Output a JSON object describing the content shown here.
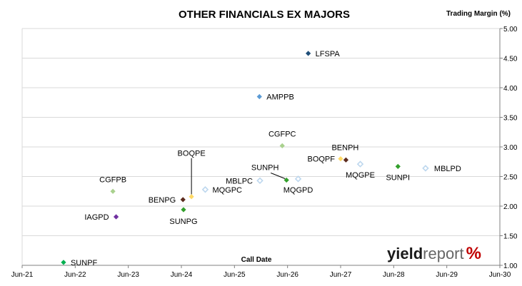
{
  "chart_data": {
    "type": "scatter",
    "title": "OTHER FINANCIALS EX MAJORS",
    "ylabel": "Trading Margin (%)",
    "xlabel": "Call Date",
    "x_ticks": [
      "Jun-21",
      "Jun-22",
      "Jun-23",
      "Jun-24",
      "Jun-25",
      "Jun-26",
      "Jun-27",
      "Jun-28",
      "Jun-29",
      "Jun-30"
    ],
    "y_ticks": [
      "1.00",
      "1.50",
      "2.00",
      "2.50",
      "3.00",
      "3.50",
      "4.00",
      "4.50",
      "5.00"
    ],
    "xlim": [
      2021.45,
      2030.45
    ],
    "ylim": [
      1.0,
      5.0
    ],
    "grid": "horizontal",
    "points": [
      {
        "label": "LFSPA",
        "x": 2026.84,
        "y": 4.58,
        "color": "#1f4e79",
        "filled": true
      },
      {
        "label": "AMPPB",
        "x": 2025.92,
        "y": 3.85,
        "color": "#5b9bd5",
        "filled": true
      },
      {
        "label": "CGFPC",
        "x": 2026.35,
        "y": 3.02,
        "color": "#a9d18e",
        "filled": true
      },
      {
        "label": "BENPH",
        "x": 2027.55,
        "y": 2.78,
        "color": "#5c2b1e",
        "filled": true
      },
      {
        "label": "BOQPF",
        "x": 2027.45,
        "y": 2.8,
        "color": "#ffd966",
        "filled": true
      },
      {
        "label": "MQGPE",
        "x": 2027.82,
        "y": 2.71,
        "color": "#bdd7ee",
        "filled": false
      },
      {
        "label": "SUNPI",
        "x": 2028.53,
        "y": 2.67,
        "color": "#33a02c",
        "filled": true
      },
      {
        "label": "MBLPD",
        "x": 2029.05,
        "y": 2.64,
        "color": "#bdd7ee",
        "filled": false
      },
      {
        "label": "SUNPH",
        "x": 2026.43,
        "y": 2.44,
        "color": "#33a02c",
        "filled": true
      },
      {
        "label": "MQGPD",
        "x": 2026.65,
        "y": 2.46,
        "color": "#bdd7ee",
        "filled": false
      },
      {
        "label": "MBLPC",
        "x": 2025.93,
        "y": 2.43,
        "color": "#bdd7ee",
        "filled": false
      },
      {
        "label": "MQGPC",
        "x": 2024.9,
        "y": 2.28,
        "color": "#bdd7ee",
        "filled": false
      },
      {
        "label": "BOQPE",
        "x": 2024.64,
        "y": 2.16,
        "color": "#ffd966",
        "filled": true
      },
      {
        "label": "CGFPB",
        "x": 2023.16,
        "y": 2.25,
        "color": "#a9d18e",
        "filled": true
      },
      {
        "label": "BENPG",
        "x": 2024.48,
        "y": 2.11,
        "color": "#5c2b1e",
        "filled": true
      },
      {
        "label": "SUNPG",
        "x": 2024.49,
        "y": 1.94,
        "color": "#33a02c",
        "filled": true
      },
      {
        "label": "IAGPD",
        "x": 2023.22,
        "y": 1.82,
        "color": "#7030a0",
        "filled": true
      },
      {
        "label": "SUNPF",
        "x": 2022.23,
        "y": 1.05,
        "color": "#00b050",
        "filled": true
      }
    ]
  },
  "logo": {
    "part1": "yield",
    "part2": "report",
    "part3": "%"
  }
}
